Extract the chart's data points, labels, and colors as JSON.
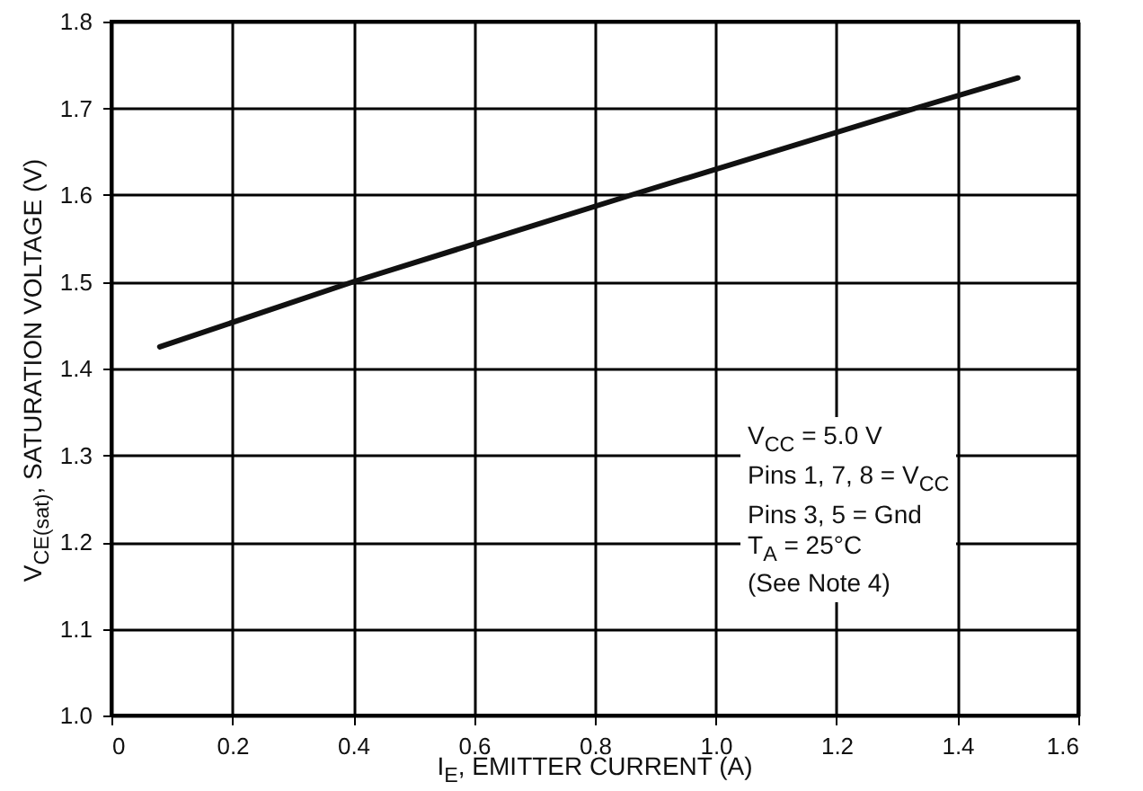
{
  "chart_data": {
    "type": "line",
    "xlabel": "I$_{E}$, EMITTER CURRENT (A)",
    "ylabel": "V$_{CE(sat)}$, SATURATION VOLTAGE (V)",
    "x": [
      0.08,
      0.4,
      0.86,
      1.33,
      1.5
    ],
    "series": [
      {
        "color": "#111111",
        "values": [
          1.425,
          1.5,
          1.6,
          1.7,
          1.735
        ]
      }
    ],
    "xlim": [
      0,
      1.6
    ],
    "xticks": [
      0,
      0.2,
      0.4,
      0.6,
      0.8,
      {
        "value": 1,
        "label": "1.0"
      },
      1.2,
      1.4,
      1.6
    ],
    "ylim": [
      1,
      1.8
    ],
    "yticks": [
      {
        "value": 1,
        "label": "1.0"
      },
      1.1,
      1.2,
      1.3,
      1.4,
      1.5,
      1.6,
      1.7,
      1.8
    ],
    "grid": true,
    "line_style": "solid",
    "marker": "none",
    "annotations": [
      "V$_{CC}$ = 5.0 V",
      "Pins 1, 7, 8 = V$_{CC}$",
      "Pins 3, 5 = Gnd",
      "T$_{A}$ = 25°C",
      "(See Note 4)"
    ]
  }
}
